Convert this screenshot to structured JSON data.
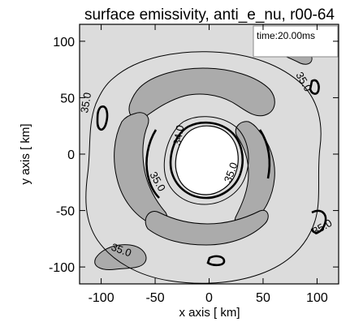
{
  "chart_data": {
    "type": "contour",
    "title": "surface emissivity, anti_e_nu, r00-64",
    "xlabel": "x axis [ km]",
    "ylabel": "y axis [ km]",
    "xlim": [
      -120,
      120
    ],
    "ylim": [
      -115,
      115
    ],
    "xticks": [
      -100,
      -50,
      0,
      50,
      100
    ],
    "yticks": [
      -100,
      -50,
      0,
      50,
      100
    ],
    "annotation": "time:20.00ms",
    "contour_labels": [
      "35.0",
      "35.0",
      "35.0",
      "34.0",
      "35.0",
      "35.0",
      "35.0"
    ],
    "background_color": "#dcdcdc",
    "lobe_color": "#ababab",
    "core_color": "#ffffff"
  }
}
